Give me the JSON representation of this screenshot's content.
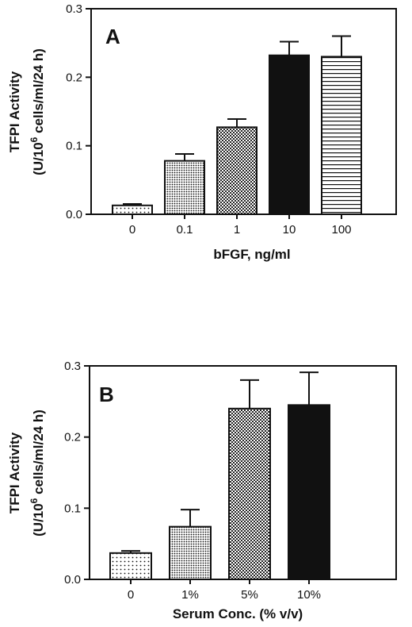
{
  "chart_data": [
    {
      "type": "bar",
      "panel_label": "A",
      "categories": [
        "0",
        "0.1",
        "1",
        "10",
        "100"
      ],
      "values": [
        0.013,
        0.078,
        0.127,
        0.232,
        0.23
      ],
      "errors": [
        0.002,
        0.01,
        0.012,
        0.02,
        0.03
      ],
      "patterns": [
        "sparse-dots",
        "dense-dots",
        "checker",
        "solid",
        "horizontal-lines"
      ],
      "xlabel": "bFGF, ng/ml",
      "ylabel_line1": "TFPI Activity",
      "ylabel_line2_pre": "(U/10",
      "ylabel_sup": "6",
      "ylabel_line2_post": " cells/ml/24 h)",
      "ylim": [
        0,
        0.3
      ],
      "yticks": [
        0,
        0.1,
        0.2,
        0.3
      ],
      "ytick_labels": [
        "0.0",
        "0.1",
        "0.2",
        "0.3"
      ],
      "grid": false
    },
    {
      "type": "bar",
      "panel_label": "B",
      "categories": [
        "0",
        "1%",
        "5%",
        "10%"
      ],
      "values": [
        0.037,
        0.074,
        0.24,
        0.245
      ],
      "errors": [
        0.003,
        0.024,
        0.04,
        0.046
      ],
      "patterns": [
        "sparse-dots",
        "dense-dots",
        "checker",
        "solid"
      ],
      "xlabel": "Serum Conc. (% v/v)",
      "ylabel_line1": "TFPI Activity",
      "ylabel_line2_pre": "(U/10",
      "ylabel_sup": "6",
      "ylabel_line2_post": " cells/ml/24 h)",
      "ylim": [
        0,
        0.3
      ],
      "yticks": [
        0,
        0.1,
        0.2,
        0.3
      ],
      "ytick_labels": [
        "0.0",
        "0.1",
        "0.2",
        "0.3"
      ],
      "grid": false
    }
  ],
  "colors": {
    "ink": "#111111",
    "background": "#ffffff"
  }
}
